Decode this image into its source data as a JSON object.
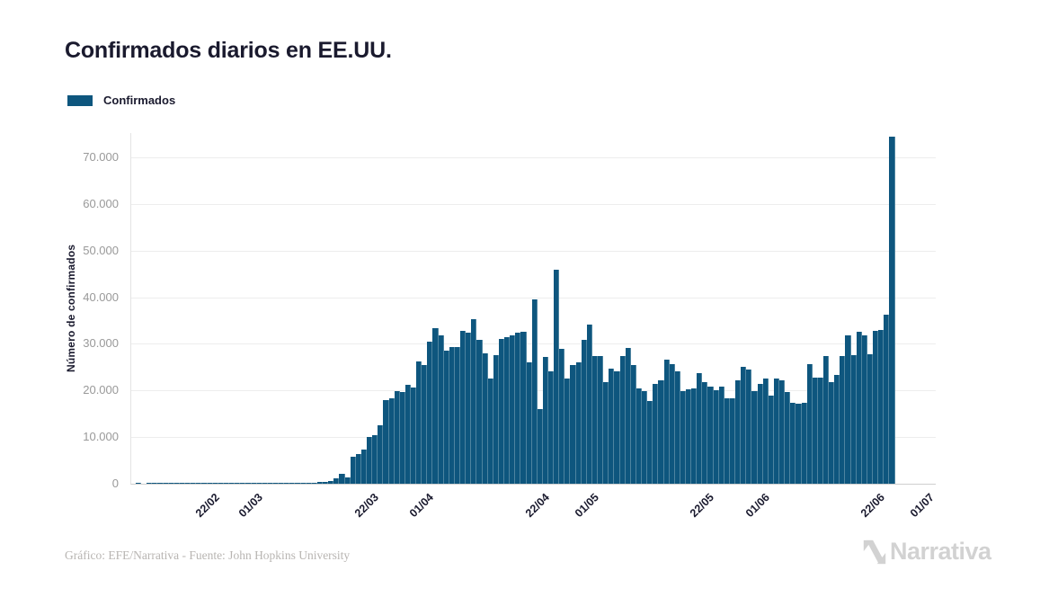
{
  "title": "Confirmados diarios en EE.UU.",
  "legend": {
    "label": "Confirmados",
    "swatch_color": "#0e567e"
  },
  "y_axis": {
    "title": "Número de confirmados",
    "tick_labels": [
      "0",
      "10.000",
      "20.000",
      "30.000",
      "40.000",
      "50.000",
      "60.000",
      "70.000"
    ],
    "tick_values": [
      0,
      10000,
      20000,
      30000,
      40000,
      50000,
      60000,
      70000
    ]
  },
  "x_axis": {
    "ticks": [
      {
        "label": "22/02",
        "day_index": 12
      },
      {
        "label": "01/03",
        "day_index": 20
      },
      {
        "label": "22/03",
        "day_index": 41
      },
      {
        "label": "01/04",
        "day_index": 51
      },
      {
        "label": "22/04",
        "day_index": 72
      },
      {
        "label": "01/05",
        "day_index": 81
      },
      {
        "label": "22/05",
        "day_index": 102
      },
      {
        "label": "01/06",
        "day_index": 112
      },
      {
        "label": "22/06",
        "day_index": 133
      },
      {
        "label": "01/07",
        "day_index": 142
      }
    ]
  },
  "footer": {
    "credit": "Gráfico: EFE/Narrativa - Fuente: John Hopkins University"
  },
  "watermark": {
    "text": "Narrativa"
  },
  "colors": {
    "bar": "#0e567e",
    "grid": "#ededed",
    "baseline": "#cfcfcf",
    "axis_line": "#e4e4e4",
    "y_tick_text": "#999999",
    "dark_text": "#1a1a2e",
    "footer_text": "#b8b5b2",
    "watermark_text": "#d2d2d2"
  },
  "chart_data": {
    "type": "bar",
    "title": "Confirmados diarios en EE.UU.",
    "series_name": "Confirmados",
    "frequency": "daily",
    "ylabel": "Número de confirmados",
    "ylim": [
      0,
      75200
    ],
    "grid": "horizontal",
    "legend_position": "top-left",
    "dates": [
      "10/02",
      "11/02",
      "12/02",
      "13/02",
      "14/02",
      "15/02",
      "16/02",
      "17/02",
      "18/02",
      "19/02",
      "20/02",
      "21/02",
      "22/02",
      "23/02",
      "24/02",
      "25/02",
      "26/02",
      "27/02",
      "28/02",
      "29/02",
      "01/03",
      "02/03",
      "03/03",
      "04/03",
      "05/03",
      "06/03",
      "07/03",
      "08/03",
      "09/03",
      "10/03",
      "11/03",
      "12/03",
      "13/03",
      "14/03",
      "15/03",
      "16/03",
      "17/03",
      "18/03",
      "19/03",
      "20/03",
      "21/03",
      "22/03",
      "23/03",
      "24/03",
      "25/03",
      "26/03",
      "27/03",
      "28/03",
      "29/03",
      "30/03",
      "31/03",
      "01/04",
      "02/04",
      "03/04",
      "04/04",
      "05/04",
      "06/04",
      "07/04",
      "08/04",
      "09/04",
      "10/04",
      "11/04",
      "12/04",
      "13/04",
      "14/04",
      "15/04",
      "16/04",
      "17/04",
      "18/04",
      "19/04",
      "20/04",
      "21/04",
      "22/04",
      "23/04",
      "24/04",
      "25/04",
      "26/04",
      "27/04",
      "28/04",
      "29/04",
      "30/04",
      "01/05",
      "02/05",
      "03/05",
      "04/05",
      "05/05",
      "06/05",
      "07/05",
      "08/05",
      "09/05",
      "10/05",
      "11/05",
      "12/05",
      "13/05",
      "14/05",
      "15/05",
      "16/05",
      "17/05",
      "18/05",
      "19/05",
      "20/05",
      "21/05",
      "22/05",
      "23/05",
      "24/05",
      "25/05",
      "26/05",
      "27/05",
      "28/05",
      "29/05",
      "30/05",
      "31/05",
      "01/06",
      "02/06",
      "03/06",
      "04/06",
      "05/06",
      "06/06",
      "07/06",
      "08/06",
      "09/06",
      "10/06",
      "11/06",
      "12/06",
      "13/06",
      "14/06",
      "15/06",
      "16/06",
      "17/06",
      "18/06",
      "19/06",
      "20/06",
      "21/06",
      "22/06",
      "23/06",
      "24/06",
      "25/06",
      "26/06"
    ],
    "values": [
      1,
      0,
      2,
      1,
      3,
      2,
      1,
      2,
      3,
      2,
      3,
      4,
      5,
      6,
      5,
      8,
      12,
      15,
      14,
      18,
      22,
      25,
      30,
      35,
      45,
      70,
      90,
      110,
      120,
      140,
      180,
      220,
      280,
      380,
      450,
      550,
      1100,
      2100,
      1300,
      5700,
      6400,
      7300,
      10000,
      10400,
      12500,
      17900,
      18400,
      19900,
      19600,
      21200,
      20600,
      26300,
      25400,
      30500,
      33400,
      31800,
      28600,
      29300,
      29300,
      32800,
      32400,
      35300,
      30800,
      27900,
      22500,
      27600,
      31100,
      31500,
      31800,
      32400,
      32600,
      26000,
      39500,
      16000,
      27100,
      24200,
      45900,
      28900,
      22500,
      25400,
      26100,
      30800,
      34200,
      27400,
      27300,
      21800,
      24700,
      24200,
      27300,
      29200,
      25400,
      20500,
      19900,
      17800,
      21500,
      22100,
      26600,
      25700,
      24100,
      19900,
      20200,
      20500,
      23700,
      21800,
      20900,
      20100,
      20900,
      18300,
      18300,
      22100,
      25000,
      24400,
      19900,
      21500,
      22500,
      18900,
      22500,
      22100,
      19600,
      17300,
      17100,
      17300,
      25700,
      22800,
      22800,
      27300,
      21800,
      23400,
      27300,
      31900,
      27600,
      32600,
      31900,
      27800,
      32800,
      32900,
      36300,
      74400
    ]
  }
}
